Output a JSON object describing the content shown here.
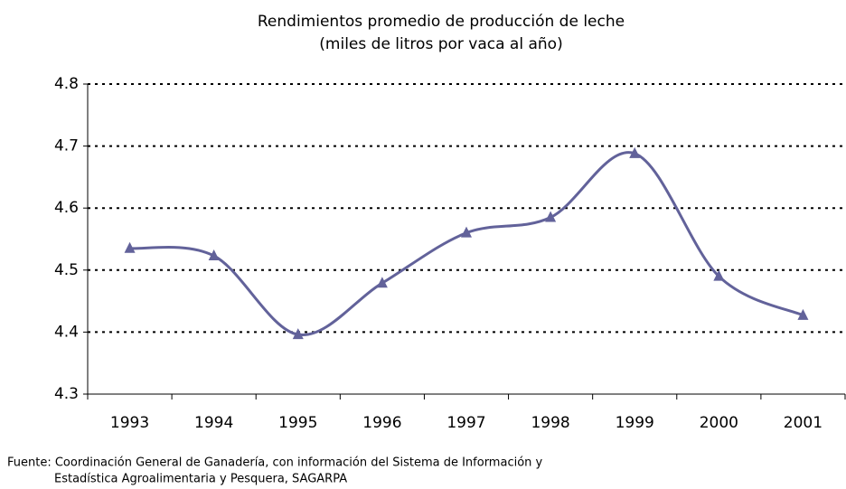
{
  "chart_data": {
    "type": "line",
    "title": [
      "Rendimientos promedio de producción de leche",
      "(miles de litros por vaca al año)"
    ],
    "categories": [
      "1993",
      "1994",
      "1995",
      "1996",
      "1997",
      "1998",
      "1999",
      "2000",
      "2001"
    ],
    "series": [
      {
        "name": "Rendimientos",
        "color": "#62629a",
        "values": [
          4.535,
          4.523,
          4.396,
          4.479,
          4.56,
          4.585,
          4.688,
          4.49,
          4.427
        ]
      }
    ],
    "ylim": [
      4.3,
      4.8
    ],
    "yticks": [
      4.3,
      4.4,
      4.5,
      4.6,
      4.7,
      4.8
    ],
    "grid": true,
    "smooth": true,
    "marker": "triangle",
    "source": [
      "Fuente: Coordinación General de Ganadería, con información del Sistema de Información y",
      "Estadística Agroalimentaria y Pesquera, SAGARPA"
    ]
  }
}
